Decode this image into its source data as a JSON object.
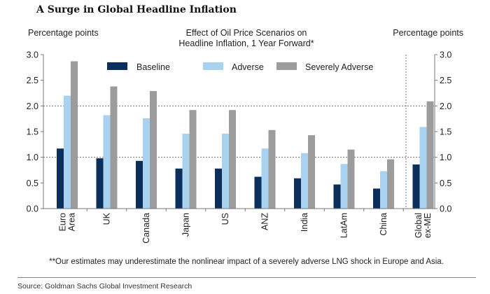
{
  "title": "A Surge in Global Headline Inflation",
  "source": "Source: Goldman Sachs Global Investment Research",
  "chart_data": {
    "type": "bar",
    "title": "Effect of Oil Price Scenarios on Headline Inflation, 1 Year Forward*",
    "title_lines": [
      "Effect of Oil Price Scenarios on",
      "Headline Inflation, 1 Year Forward*"
    ],
    "ylabel_left": "Percentage points",
    "ylabel_right": "Percentage points",
    "ylim": [
      0,
      3.0
    ],
    "yticks": [
      "0.0",
      "0.5",
      "1.0",
      "1.5",
      "2.0",
      "2.5",
      "3.0"
    ],
    "gridlines_dashed": [
      1.0,
      2.0
    ],
    "legend_position": "top",
    "categories": [
      [
        "Euro",
        "Area"
      ],
      [
        "UK"
      ],
      [
        "Canada"
      ],
      [
        "Japan"
      ],
      [
        "US"
      ],
      [
        "ANZ"
      ],
      [
        "India"
      ],
      [
        "LatAm"
      ],
      [
        "China"
      ],
      [
        "Global",
        "ex-ME"
      ]
    ],
    "series": [
      {
        "name": "Baseline",
        "color": "#0b2f5a",
        "values": [
          1.17,
          0.98,
          0.93,
          0.78,
          0.78,
          0.62,
          0.59,
          0.47,
          0.39,
          0.86
        ]
      },
      {
        "name": "Adverse",
        "color": "#a9d2f0",
        "values": [
          2.2,
          1.82,
          1.76,
          1.46,
          1.46,
          1.17,
          1.08,
          0.87,
          0.73,
          1.59
        ]
      },
      {
        "name": "Severely Adverse",
        "color": "#9c9c9c",
        "values": [
          2.87,
          2.38,
          2.29,
          1.92,
          1.92,
          1.53,
          1.43,
          1.15,
          0.96,
          2.09
        ]
      }
    ],
    "footnote": "**Our estimates may underestimate the nonlinear impact of a severely adverse LNG shock in Europe and Asia."
  }
}
